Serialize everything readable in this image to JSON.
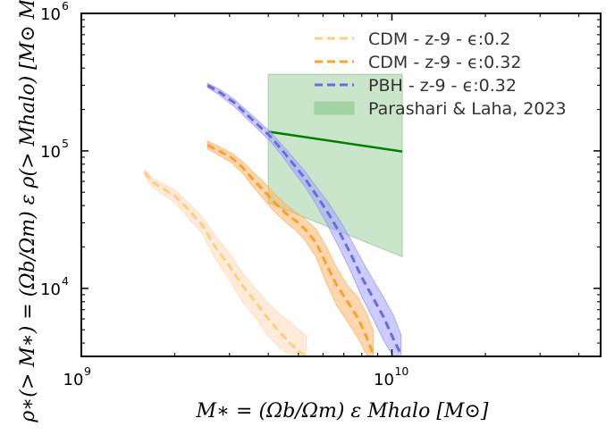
{
  "chart_data": {
    "type": "line",
    "xscale": "log",
    "yscale": "log",
    "xlim": [
      1000000000,
      47000000000
    ],
    "ylim": [
      3200,
      1000000
    ],
    "xlabel": "M∗ = (Ωb/Ωm) ε Mhalo [M⊙]",
    "ylabel": "ρ∗(> M∗) = (Ωb/Ωm) ε ρ(> Mhalo) [M⊙ Mpc⁻³]",
    "x_ticks": [
      {
        "value": 1000000000,
        "base": "10",
        "exp": "9"
      },
      {
        "value": 10000000000,
        "base": "10",
        "exp": "10"
      }
    ],
    "y_ticks": [
      {
        "value": 10000,
        "base": "10",
        "exp": "4"
      },
      {
        "value": 100000,
        "base": "10",
        "exp": "5"
      },
      {
        "value": 1000000,
        "base": "10",
        "exp": "6"
      }
    ],
    "series": [
      {
        "name": "CDM - z-9 - ϵ:0.2",
        "color": "#ffcd80",
        "band_color": "#ffd7b3",
        "x": [
          1600000000,
          1700000000,
          2000000000,
          2200000000,
          2450000000,
          2700000000,
          3000000000,
          3300000000,
          3700000000,
          4000000000,
          4350000000,
          4700000000,
          5000000000,
          5300000000
        ],
        "y": [
          70000,
          59000,
          47000,
          38000,
          29000,
          20000,
          14500,
          10500,
          7600,
          6000,
          4800,
          4000,
          3500,
          3200
        ],
        "band_upper": [
          73000,
          63000,
          52000,
          42000,
          33000,
          24000,
          18000,
          13000,
          9500,
          7800,
          6500,
          5700,
          5000,
          4500
        ],
        "band_lower": [
          66000,
          54000,
          42000,
          33000,
          25000,
          16500,
          11500,
          8000,
          5900,
          4500,
          3700,
          3300,
          3200,
          3200
        ]
      },
      {
        "name": "CDM - z-9 - ϵ:0.32",
        "color": "#ff9f27",
        "band_color": "#ffb060",
        "x": [
          2550000000,
          2800000000,
          3050000000,
          3300000000,
          3550000000,
          3850000000,
          4150000000,
          4500000000,
          4900000000,
          5250000000,
          5700000000,
          6150000000,
          6650000000,
          7200000000,
          7800000000,
          8300000000,
          8700000000
        ],
        "y": [
          110000,
          99000,
          89000,
          76000,
          63000,
          52000,
          43000,
          36000,
          31000,
          27000,
          21500,
          15000,
          10500,
          8000,
          6000,
          4400,
          3300
        ],
        "band_upper": [
          118000,
          106000,
          96000,
          84000,
          71000,
          60000,
          50000,
          42000,
          36000,
          32000,
          27000,
          20000,
          14000,
          10500,
          8500,
          6500,
          5000
        ],
        "band_lower": [
          103000,
          92000,
          82000,
          69000,
          56000,
          45000,
          37000,
          31000,
          26500,
          22500,
          17000,
          11000,
          7500,
          5700,
          4300,
          3300,
          3200
        ]
      },
      {
        "name": "PBH - z-9 - ϵ:0.32",
        "color": "#6a6ae8",
        "band_color": "#9999ff",
        "x": [
          2550000000,
          2800000000,
          3100000000,
          3400000000,
          3700000000,
          4050000000,
          4400000000,
          4800000000,
          5250000000,
          5700000000,
          6200000000,
          6750000000,
          7350000000,
          8000000000,
          8700000000,
          9400000000,
          10100000000,
          10700000000
        ],
        "y": [
          300000,
          265000,
          225000,
          185000,
          155000,
          128000,
          103000,
          81000,
          63000,
          48000,
          36000,
          26000,
          18000,
          12000,
          8500,
          6200,
          4300,
          3300
        ],
        "band_upper": [
          310000,
          278000,
          238000,
          197000,
          166000,
          138000,
          112000,
          90000,
          71000,
          55000,
          43000,
          32000,
          23000,
          16000,
          11500,
          8600,
          6400,
          4600
        ],
        "band_lower": [
          290000,
          252000,
          212000,
          173000,
          144000,
          118000,
          94000,
          72000,
          55000,
          41000,
          29000,
          20000,
          13500,
          8700,
          6000,
          4200,
          3200,
          3200
        ]
      }
    ],
    "reference": {
      "name": "Parashari & Laha, 2023",
      "line_color": "#008000",
      "fill_color": "#9fd19f",
      "x": [
        4000000000,
        10800000000
      ],
      "y": [
        138000,
        99000
      ],
      "band_upper": [
        360000,
        360000
      ],
      "band_lower": [
        42000,
        17000
      ]
    },
    "legend": {
      "position": "top-right"
    }
  }
}
